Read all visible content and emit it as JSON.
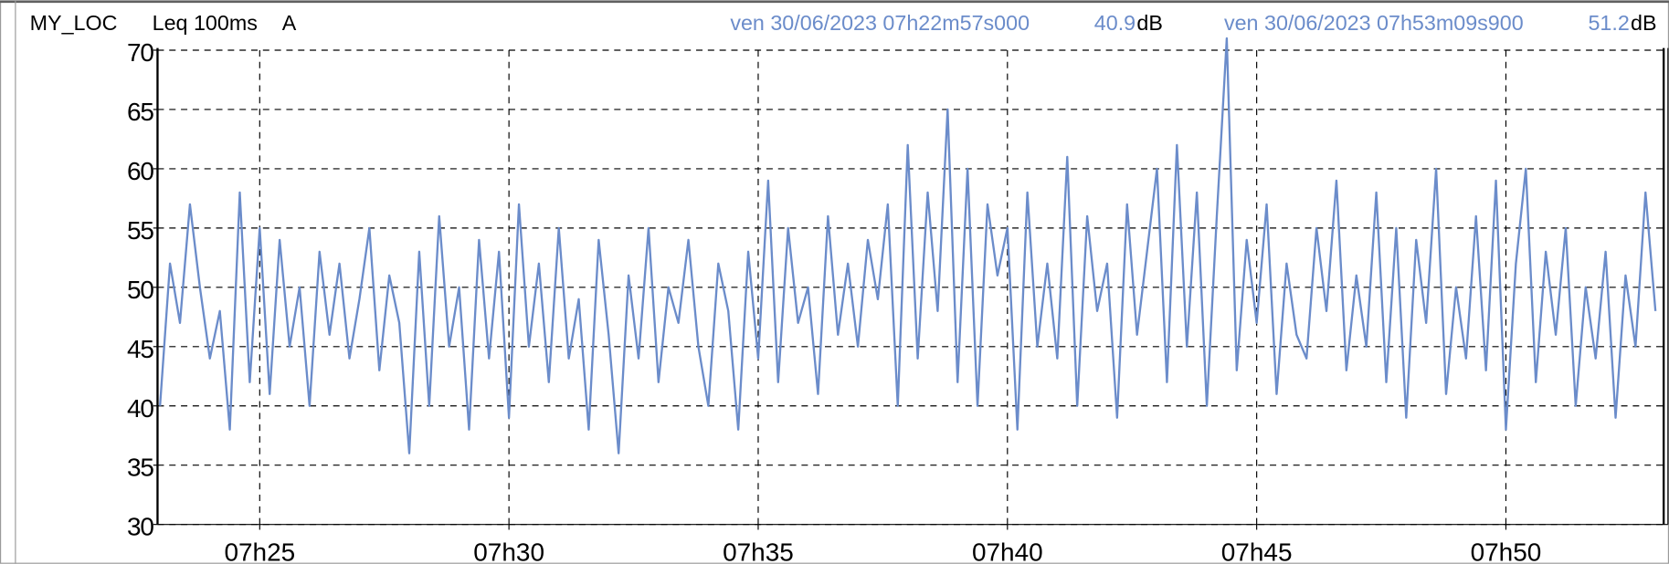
{
  "chart_data": {
    "type": "line",
    "header": {
      "location": "MY_LOC",
      "metric": "Leq 100ms",
      "weighting": "A",
      "cursors": [
        {
          "time": "ven 30/06/2023 07h22m57s000",
          "value": 40.9,
          "unit": "dB"
        },
        {
          "time": "ven 30/06/2023 07h53m09s900",
          "value": 51.2,
          "unit": "dB"
        }
      ]
    },
    "color": "#6b8cca",
    "grid": true,
    "xlim": [
      442.95,
      473.165
    ],
    "ylim": [
      30,
      70
    ],
    "xticks": [
      {
        "value": 445,
        "label": "07h25"
      },
      {
        "value": 450,
        "label": "07h30"
      },
      {
        "value": 455,
        "label": "07h35"
      },
      {
        "value": 460,
        "label": "07h40"
      },
      {
        "value": 465,
        "label": "07h45"
      },
      {
        "value": 470,
        "label": "07h50"
      }
    ],
    "yticks": [
      30,
      35,
      40,
      45,
      50,
      55,
      60,
      65,
      70
    ],
    "x": [
      443,
      443.2,
      443.4,
      443.6,
      443.8,
      444,
      444.2,
      444.4,
      444.6,
      444.8,
      445,
      445.2,
      445.4,
      445.6,
      445.8,
      446,
      446.2,
      446.4,
      446.6,
      446.8,
      447,
      447.2,
      447.4,
      447.6,
      447.8,
      448,
      448.2,
      448.4,
      448.6,
      448.8,
      449,
      449.2,
      449.4,
      449.6,
      449.8,
      450,
      450.2,
      450.4,
      450.6,
      450.8,
      451,
      451.2,
      451.4,
      451.6,
      451.8,
      452,
      452.2,
      452.4,
      452.6,
      452.8,
      453,
      453.2,
      453.4,
      453.6,
      453.8,
      454,
      454.2,
      454.4,
      454.6,
      454.8,
      455,
      455.2,
      455.4,
      455.6,
      455.8,
      456,
      456.2,
      456.4,
      456.6,
      456.8,
      457,
      457.2,
      457.4,
      457.6,
      457.8,
      458,
      458.2,
      458.4,
      458.6,
      458.8,
      459,
      459.2,
      459.4,
      459.6,
      459.8,
      460,
      460.2,
      460.4,
      460.6,
      460.8,
      461,
      461.2,
      461.4,
      461.6,
      461.8,
      462,
      462.2,
      462.4,
      462.6,
      462.8,
      463,
      463.2,
      463.4,
      463.6,
      463.8,
      464,
      464.2,
      464.4,
      464.6,
      464.8,
      465,
      465.2,
      465.4,
      465.6,
      465.8,
      466,
      466.2,
      466.4,
      466.6,
      466.8,
      467,
      467.2,
      467.4,
      467.6,
      467.8,
      468,
      468.2,
      468.4,
      468.6,
      468.8,
      469,
      469.2,
      469.4,
      469.6,
      469.8,
      470,
      470.2,
      470.4,
      470.6,
      470.8,
      471,
      471.2,
      471.4,
      471.6,
      471.8,
      472,
      472.2,
      472.4,
      472.6,
      472.8,
      473
    ],
    "values": [
      40,
      52,
      47,
      57,
      50,
      44,
      48,
      38,
      58,
      42,
      55,
      41,
      54,
      45,
      50,
      40,
      53,
      46,
      52,
      44,
      49,
      55,
      43,
      51,
      47,
      36,
      53,
      40,
      56,
      45,
      50,
      38,
      54,
      44,
      53,
      39,
      57,
      45,
      52,
      42,
      55,
      44,
      49,
      38,
      54,
      46,
      36,
      51,
      44,
      55,
      42,
      50,
      47,
      54,
      45,
      40,
      52,
      48,
      38,
      53,
      44,
      59,
      42,
      55,
      47,
      50,
      41,
      56,
      46,
      52,
      45,
      54,
      49,
      57,
      40,
      62,
      44,
      58,
      48,
      65,
      42,
      60,
      40,
      57,
      51,
      55,
      38,
      58,
      45,
      52,
      44,
      61,
      40,
      56,
      48,
      52,
      39,
      57,
      46,
      53,
      60,
      42,
      62,
      45,
      58,
      40,
      56,
      71,
      43,
      54,
      47,
      57,
      41,
      52,
      46,
      44,
      55,
      48,
      59,
      43,
      51,
      45,
      58,
      42,
      55,
      39,
      54,
      47,
      60,
      41,
      50,
      44,
      56,
      43,
      59,
      38,
      52,
      60,
      42,
      53,
      46,
      55,
      40,
      50,
      44,
      53,
      39,
      51,
      45,
      58,
      48
    ]
  }
}
